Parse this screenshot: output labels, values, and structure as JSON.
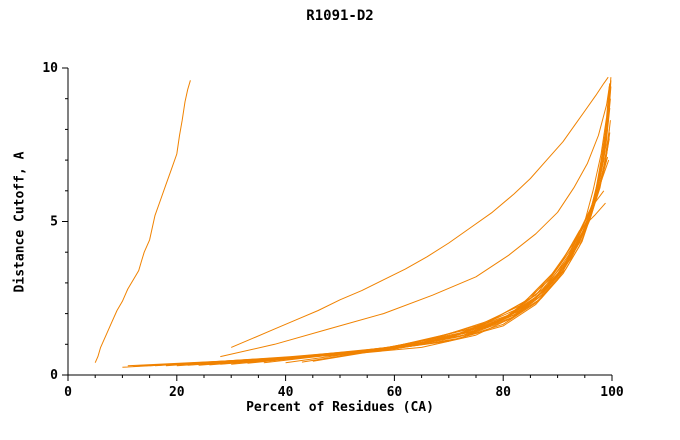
{
  "chart_data": {
    "type": "line",
    "title": "R1091-D2",
    "xlabel": "Percent of Residues (CA)",
    "ylabel": "Distance Cutoff, A",
    "xlim": [
      0,
      100
    ],
    "ylim": [
      0,
      10
    ],
    "xticks": [
      0,
      20,
      40,
      60,
      80,
      100
    ],
    "xtick_labels": [
      "0",
      "20",
      "40",
      "60",
      "80",
      "100"
    ],
    "yticks": [
      0,
      5,
      10
    ],
    "ytick_labels": [
      "0",
      "5",
      "10"
    ],
    "x_minor_ticks": [
      5,
      10,
      15,
      25,
      30,
      35,
      45,
      50,
      55,
      65,
      70,
      75,
      85,
      90,
      95
    ],
    "y_minor_ticks": [
      1,
      2,
      3,
      4,
      6,
      7,
      8,
      9
    ],
    "grid": false,
    "legend": "none",
    "line_color": "#f08200",
    "axis_color": "#000000",
    "series": [
      {
        "points": [
          [
            5,
            0.4
          ],
          [
            5.5,
            0.6
          ],
          [
            6,
            0.9
          ],
          [
            7,
            1.3
          ],
          [
            8,
            1.7
          ],
          [
            9,
            2.1
          ],
          [
            10,
            2.4
          ],
          [
            11,
            2.8
          ],
          [
            12,
            3.1
          ],
          [
            13,
            3.4
          ],
          [
            13.5,
            3.7
          ],
          [
            14,
            4.0
          ],
          [
            15,
            4.4
          ],
          [
            15.5,
            4.8
          ],
          [
            16,
            5.2
          ],
          [
            17,
            5.7
          ],
          [
            18,
            6.2
          ],
          [
            19,
            6.7
          ],
          [
            20,
            7.2
          ],
          [
            20.5,
            7.8
          ],
          [
            21,
            8.3
          ],
          [
            21.5,
            8.9
          ],
          [
            22,
            9.3
          ],
          [
            22.5,
            9.6
          ]
        ]
      },
      {
        "points": [
          [
            30,
            0.9
          ],
          [
            34,
            1.2
          ],
          [
            38,
            1.5
          ],
          [
            42,
            1.8
          ],
          [
            46,
            2.1
          ],
          [
            50,
            2.45
          ],
          [
            54,
            2.75
          ],
          [
            58,
            3.1
          ],
          [
            62,
            3.45
          ],
          [
            66,
            3.85
          ],
          [
            70,
            4.3
          ],
          [
            74,
            4.8
          ],
          [
            78,
            5.3
          ],
          [
            82,
            5.9
          ],
          [
            85,
            6.4
          ],
          [
            88,
            7.0
          ],
          [
            91,
            7.6
          ],
          [
            93,
            8.1
          ],
          [
            95,
            8.6
          ],
          [
            97,
            9.1
          ],
          [
            98.5,
            9.5
          ],
          [
            99.3,
            9.7
          ]
        ]
      },
      {
        "points": [
          [
            10,
            0.25
          ],
          [
            25,
            0.4
          ],
          [
            45,
            0.6
          ],
          [
            60,
            0.85
          ],
          [
            72,
            1.25
          ],
          [
            80,
            1.8
          ],
          [
            86,
            2.5
          ],
          [
            90,
            3.3
          ],
          [
            93,
            4.1
          ],
          [
            95,
            5.0
          ],
          [
            96.5,
            6.0
          ],
          [
            98,
            7.2
          ],
          [
            99,
            8.4
          ],
          [
            99.5,
            9.4
          ]
        ]
      },
      {
        "points": [
          [
            11,
            0.3
          ],
          [
            28,
            0.45
          ],
          [
            48,
            0.65
          ],
          [
            63,
            0.95
          ],
          [
            74,
            1.35
          ],
          [
            82,
            1.95
          ],
          [
            87,
            2.7
          ],
          [
            91,
            3.5
          ],
          [
            94,
            4.4
          ],
          [
            96,
            5.3
          ],
          [
            97.5,
            6.4
          ],
          [
            98.7,
            7.6
          ],
          [
            99.4,
            8.8
          ],
          [
            99.8,
            9.7
          ]
        ]
      },
      {
        "points": [
          [
            12,
            0.28
          ],
          [
            30,
            0.45
          ],
          [
            50,
            0.65
          ],
          [
            65,
            0.9
          ],
          [
            75,
            1.3
          ],
          [
            82,
            1.9
          ],
          [
            87,
            2.6
          ],
          [
            91,
            3.4
          ],
          [
            94,
            4.3
          ],
          [
            96,
            5.2
          ],
          [
            97.5,
            6.3
          ],
          [
            98.5,
            7.4
          ],
          [
            99.2,
            8.6
          ],
          [
            99.6,
            9.5
          ]
        ]
      },
      {
        "points": [
          [
            13,
            0.3
          ],
          [
            35,
            0.5
          ],
          [
            55,
            0.75
          ],
          [
            70,
            1.1
          ],
          [
            80,
            1.6
          ],
          [
            86,
            2.3
          ],
          [
            90,
            3.1
          ],
          [
            93,
            4.0
          ],
          [
            95.5,
            5.0
          ],
          [
            97,
            6.0
          ],
          [
            98,
            7.0
          ],
          [
            99,
            8.2
          ],
          [
            99.5,
            9.3
          ]
        ]
      },
      {
        "points": [
          [
            14,
            0.3
          ],
          [
            38,
            0.55
          ],
          [
            58,
            0.8
          ],
          [
            71,
            1.15
          ],
          [
            80,
            1.65
          ],
          [
            86,
            2.35
          ],
          [
            90,
            3.1
          ],
          [
            93,
            4.0
          ],
          [
            95.5,
            4.9
          ],
          [
            97,
            5.9
          ],
          [
            98.3,
            7.0
          ],
          [
            99.2,
            8.1
          ],
          [
            99.7,
            9.0
          ]
        ]
      },
      {
        "points": [
          [
            15,
            0.3
          ],
          [
            40,
            0.55
          ],
          [
            60,
            0.85
          ],
          [
            72,
            1.2
          ],
          [
            81,
            1.8
          ],
          [
            87,
            2.5
          ],
          [
            91,
            3.3
          ],
          [
            94,
            4.2
          ],
          [
            96,
            5.1
          ],
          [
            97.5,
            6.2
          ],
          [
            98.8,
            7.5
          ],
          [
            99.5,
            8.8
          ],
          [
            99.8,
            9.6
          ]
        ]
      },
      {
        "points": [
          [
            16,
            0.3
          ],
          [
            41,
            0.6
          ],
          [
            61,
            0.9
          ],
          [
            73,
            1.3
          ],
          [
            82,
            1.9
          ],
          [
            87.5,
            2.65
          ],
          [
            91.5,
            3.45
          ],
          [
            94.5,
            4.35
          ],
          [
            96.3,
            5.3
          ],
          [
            97.8,
            6.4
          ],
          [
            98.9,
            7.5
          ],
          [
            99.6,
            8.7
          ]
        ]
      },
      {
        "points": [
          [
            18,
            0.3
          ],
          [
            42,
            0.6
          ],
          [
            62,
            0.95
          ],
          [
            74,
            1.4
          ],
          [
            82.5,
            2.0
          ],
          [
            88,
            2.8
          ],
          [
            92,
            3.7
          ],
          [
            95,
            4.7
          ],
          [
            97,
            5.8
          ],
          [
            98.5,
            7.0
          ],
          [
            99.3,
            8.3
          ],
          [
            99.8,
            9.4
          ]
        ]
      },
      {
        "points": [
          [
            20,
            0.3
          ],
          [
            44,
            0.6
          ],
          [
            64,
            1.0
          ],
          [
            75,
            1.45
          ],
          [
            83,
            2.1
          ],
          [
            88.5,
            2.9
          ],
          [
            92.5,
            3.8
          ],
          [
            95.2,
            4.8
          ],
          [
            97.2,
            5.8
          ],
          [
            98.6,
            6.9
          ],
          [
            99.5,
            8.0
          ]
        ]
      },
      {
        "points": [
          [
            22,
            0.32
          ],
          [
            46,
            0.62
          ],
          [
            66,
            1.05
          ],
          [
            77,
            1.55
          ],
          [
            84,
            2.2
          ],
          [
            89,
            3.0
          ],
          [
            93,
            4.0
          ],
          [
            95.8,
            5.0
          ],
          [
            97.8,
            6.1
          ],
          [
            99,
            7.2
          ],
          [
            99.7,
            8.3
          ]
        ]
      },
      {
        "points": [
          [
            24,
            0.32
          ],
          [
            48,
            0.65
          ],
          [
            67,
            1.1
          ],
          [
            78,
            1.65
          ],
          [
            85,
            2.35
          ],
          [
            90,
            3.2
          ],
          [
            93.5,
            4.2
          ],
          [
            96.2,
            5.2
          ],
          [
            98,
            6.3
          ],
          [
            99.2,
            7.4
          ]
        ]
      },
      {
        "points": [
          [
            26,
            0.33
          ],
          [
            50,
            0.68
          ],
          [
            69,
            1.15
          ],
          [
            79,
            1.75
          ],
          [
            86,
            2.5
          ],
          [
            90.5,
            3.35
          ],
          [
            94,
            4.4
          ],
          [
            96.6,
            5.5
          ],
          [
            98.4,
            6.6
          ],
          [
            99.5,
            7.7
          ]
        ]
      },
      {
        "points": [
          [
            28,
            0.35
          ],
          [
            52,
            0.7
          ],
          [
            70,
            1.2
          ],
          [
            80,
            1.85
          ],
          [
            86.5,
            2.6
          ],
          [
            91,
            3.5
          ],
          [
            94.5,
            4.6
          ],
          [
            97,
            5.7
          ],
          [
            98.7,
            6.8
          ],
          [
            99.6,
            7.9
          ]
        ]
      },
      {
        "points": [
          [
            30,
            0.35
          ],
          [
            54,
            0.75
          ],
          [
            71,
            1.3
          ],
          [
            81,
            1.95
          ],
          [
            87,
            2.75
          ],
          [
            91.5,
            3.7
          ],
          [
            95,
            4.8
          ],
          [
            97.3,
            5.9
          ],
          [
            99,
            7.0
          ]
        ]
      },
      {
        "points": [
          [
            33,
            0.38
          ],
          [
            56,
            0.8
          ],
          [
            73,
            1.4
          ],
          [
            82,
            2.1
          ],
          [
            88,
            2.9
          ],
          [
            92,
            3.9
          ],
          [
            95.3,
            5.0
          ],
          [
            97.6,
            6.1
          ],
          [
            99.2,
            7.1
          ]
        ]
      },
      {
        "points": [
          [
            36,
            0.4
          ],
          [
            58,
            0.85
          ],
          [
            74,
            1.5
          ],
          [
            83,
            2.25
          ],
          [
            88.5,
            3.1
          ],
          [
            92.5,
            4.1
          ],
          [
            95.6,
            5.2
          ],
          [
            98,
            6.3
          ],
          [
            99.4,
            7.0
          ]
        ]
      },
      {
        "points": [
          [
            40,
            0.4
          ],
          [
            60,
            0.9
          ],
          [
            76,
            1.6
          ],
          [
            84,
            2.4
          ],
          [
            89,
            3.3
          ],
          [
            93,
            4.3
          ],
          [
            96,
            5.4
          ],
          [
            98.2,
            6.4
          ]
        ]
      },
      {
        "points": [
          [
            43,
            0.42
          ],
          [
            62,
            0.95
          ],
          [
            77,
            1.7
          ],
          [
            85,
            2.5
          ],
          [
            90,
            3.5
          ],
          [
            93.5,
            4.5
          ],
          [
            96.4,
            5.5
          ],
          [
            98.5,
            6.0
          ]
        ]
      },
      {
        "points": [
          [
            45,
            0.45
          ],
          [
            64,
            1.0
          ],
          [
            78,
            1.8
          ],
          [
            86,
            2.6
          ],
          [
            90.5,
            3.6
          ],
          [
            94,
            4.7
          ],
          [
            96.8,
            5.2
          ],
          [
            98.8,
            5.6
          ]
        ]
      },
      {
        "points": [
          [
            28,
            0.6
          ],
          [
            38,
            1.0
          ],
          [
            48,
            1.5
          ],
          [
            58,
            2.0
          ],
          [
            67,
            2.6
          ],
          [
            75,
            3.2
          ],
          [
            81,
            3.9
          ],
          [
            86,
            4.6
          ],
          [
            90,
            5.3
          ],
          [
            93,
            6.1
          ],
          [
            95.5,
            6.9
          ],
          [
            97.5,
            7.8
          ],
          [
            99,
            8.8
          ],
          [
            99.6,
            9.5
          ]
        ]
      }
    ]
  }
}
